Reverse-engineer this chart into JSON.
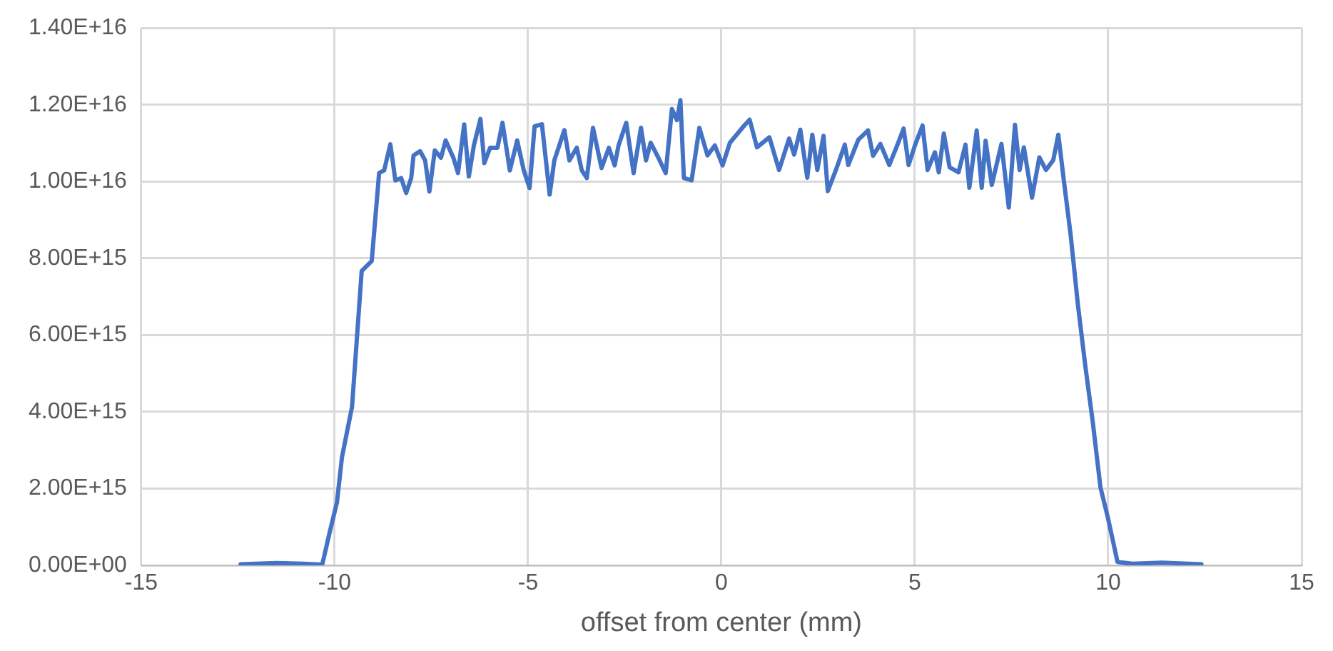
{
  "chart_data": {
    "type": "line",
    "xlabel": "offset from center (mm)",
    "x": [
      -12.43,
      -11.5,
      -10.8,
      -10.32,
      -10.13,
      -9.94,
      -9.81,
      -9.55,
      -9.3,
      -9.04,
      -8.85,
      -8.72,
      -8.56,
      -8.43,
      -8.28,
      -8.15,
      -8.02,
      -7.96,
      -7.79,
      -7.66,
      -7.55,
      -7.41,
      -7.25,
      -7.13,
      -6.93,
      -6.81,
      -6.65,
      -6.53,
      -6.4,
      -6.23,
      -6.13,
      -5.98,
      -5.79,
      -5.66,
      -5.47,
      -5.28,
      -5.11,
      -4.96,
      -4.83,
      -4.64,
      -4.44,
      -4.32,
      -4.06,
      -3.93,
      -3.74,
      -3.61,
      -3.48,
      -3.32,
      -3.1,
      -2.91,
      -2.76,
      -2.66,
      -2.46,
      -2.27,
      -2.08,
      -1.95,
      -1.83,
      -1.63,
      -1.44,
      -1.28,
      -1.15,
      -1.06,
      -0.97,
      -0.77,
      -0.57,
      -0.36,
      -0.17,
      0.03,
      0.22,
      0.6,
      0.73,
      0.92,
      1.24,
      1.49,
      1.75,
      1.88,
      2.04,
      2.22,
      2.35,
      2.48,
      2.64,
      2.75,
      2.96,
      3.19,
      3.28,
      3.54,
      3.79,
      3.92,
      4.11,
      4.34,
      4.56,
      4.71,
      4.84,
      5.01,
      5.2,
      5.33,
      5.52,
      5.62,
      5.75,
      5.9,
      6.13,
      6.31,
      6.41,
      6.6,
      6.73,
      6.83,
      6.99,
      7.24,
      7.43,
      7.59,
      7.71,
      7.82,
      8.03,
      8.22,
      8.39,
      8.58,
      8.71,
      8.86,
      9.03,
      9.22,
      9.41,
      9.6,
      9.8,
      9.99,
      10.24,
      10.63,
      11.39,
      12.41
    ],
    "series": [
      {
        "color": "#4472c4",
        "values": [
          30000000000000.0,
          60000000000000.0,
          40000000000000.0,
          20000000000000.0,
          850000000000000.0,
          1640000000000000.0,
          2820000000000000.0,
          4130000000000000.0,
          7670000000000000.0,
          7930000000000000.0,
          1.022e+16,
          1.029e+16,
          1.097e+16,
          1.003e+16,
          1.009e+16,
          9700000000000000.0,
          1.009e+16,
          1.068e+16,
          1.079e+16,
          1.055e+16,
          9740000000000000.0,
          1.081e+16,
          1.062e+16,
          1.107e+16,
          1.062e+16,
          1.022e+16,
          1.149e+16,
          1.013e+16,
          1.094e+16,
          1.163e+16,
          1.048e+16,
          1.088e+16,
          1.088e+16,
          1.153e+16,
          1.029e+16,
          1.107e+16,
          1.029e+16,
          9830000000000000.0,
          1.144e+16,
          1.149e+16,
          9660000000000000.0,
          1.055e+16,
          1.134e+16,
          1.055e+16,
          1.088e+16,
          1.029e+16,
          1.009e+16,
          1.14e+16,
          1.035e+16,
          1.088e+16,
          1.042e+16,
          1.094e+16,
          1.153e+16,
          1.022e+16,
          1.14e+16,
          1.055e+16,
          1.101e+16,
          1.062e+16,
          1.022e+16,
          1.189e+16,
          1.16e+16,
          1.212e+16,
          1.009e+16,
          1.003e+16,
          1.14e+16,
          1.068e+16,
          1.094e+16,
          1.042e+16,
          1.101e+16,
          1.147e+16,
          1.161e+16,
          1.089e+16,
          1.115e+16,
          1.03e+16,
          1.112e+16,
          1.07e+16,
          1.135e+16,
          1.01e+16,
          1.122e+16,
          1.03e+16,
          1.119e+16,
          9750000000000000.0,
          1.03e+16,
          1.096e+16,
          1.043e+16,
          1.109e+16,
          1.133e+16,
          1.067e+16,
          1.098e+16,
          1.043e+16,
          1.098e+16,
          1.138e+16,
          1.043e+16,
          1.096e+16,
          1.146e+16,
          1.03e+16,
          1.076e+16,
          1.024e+16,
          1.125e+16,
          1.037e+16,
          1.024e+16,
          1.096e+16,
          9840000000000000.0,
          1.133e+16,
          9840000000000000.0,
          1.106e+16,
          9910000000000000.0,
          1.098e+16,
          9320000000000000.0,
          1.148e+16,
          1.03e+16,
          1.089e+16,
          9580000000000000.0,
          1.063e+16,
          1.03e+16,
          1.056e+16,
          1.122e+16,
          9970000000000000.0,
          8600000000000000.0,
          6760000000000000.0,
          5180000000000000.0,
          3740000000000000.0,
          2030000000000000.0,
          1250000000000000.0,
          90000000000000.0,
          40000000000000.0,
          70000000000000.0,
          30000000000000.0
        ]
      }
    ],
    "xlim": [
      -15,
      15
    ],
    "xticks": [
      -15,
      -10,
      -5,
      0,
      5,
      10,
      15
    ],
    "ylim": [
      0,
      1.4e+16
    ],
    "yticks": [
      {
        "value": 0,
        "label": "0.00E+00"
      },
      {
        "value": 2000000000000000.0,
        "label": "2.00E+15"
      },
      {
        "value": 4000000000000000.0,
        "label": "4.00E+15"
      },
      {
        "value": 6000000000000000.0,
        "label": "6.00E+15"
      },
      {
        "value": 8000000000000000.0,
        "label": "8.00E+15"
      },
      {
        "value": 1e+16,
        "label": "1.00E+16"
      },
      {
        "value": 1.2e+16,
        "label": "1.20E+16"
      },
      {
        "value": 1.4e+16,
        "label": "1.40E+16"
      }
    ],
    "grid": true
  }
}
